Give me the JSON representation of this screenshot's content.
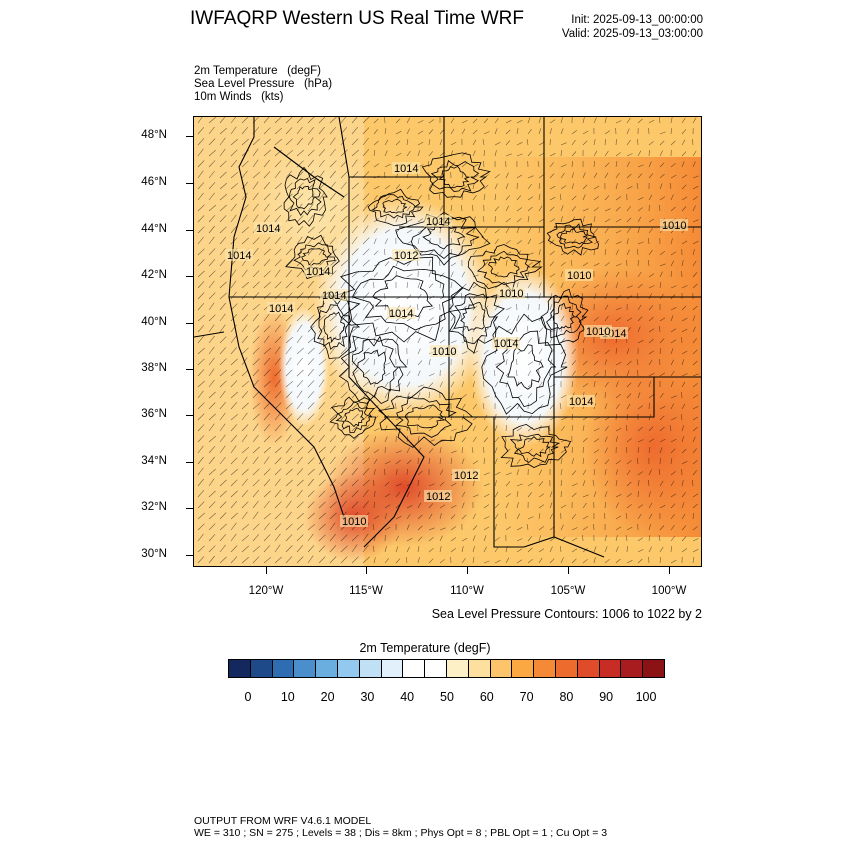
{
  "header": {
    "title": "IWFAQRP Western US Real Time WRF",
    "init": "Init: 2025-09-13_00:00:00",
    "valid": "Valid: 2025-09-13_03:00:00"
  },
  "fields": [
    "2m Temperature   (degF)",
    "Sea Level Pressure   (hPa)",
    "10m Winds   (kts)"
  ],
  "map": {
    "lat_labels": [
      "48°N",
      "46°N",
      "44°N",
      "42°N",
      "40°N",
      "38°N",
      "36°N",
      "34°N",
      "32°N",
      "30°N"
    ],
    "lon_labels": [
      "120°W",
      "115°W",
      "110°W",
      "105°W",
      "100°W"
    ],
    "pressure_labels": [
      "1014",
      "1014",
      "1014",
      "1014",
      "1012",
      "1014",
      "1014",
      "1014",
      "1014",
      "1010",
      "1010",
      "1010",
      "1010",
      "1014",
      "1014",
      "1014",
      "1012",
      "1012",
      "1010",
      "1010"
    ],
    "land_color": "#fcc86a",
    "hot_color": "#e8652f",
    "cool_color": "#eef6fb"
  },
  "contour_note": "Sea Level Pressure Contours: 1006 to 1022 by 2",
  "colorbar": {
    "title": "2m Temperature  (degF)",
    "labels": [
      "0",
      "10",
      "20",
      "30",
      "40",
      "50",
      "60",
      "70",
      "80",
      "90",
      "100"
    ],
    "colors": [
      "#13285c",
      "#1f4a8a",
      "#2f6db3",
      "#4a8fcc",
      "#6aaedf",
      "#93c9ee",
      "#bfe0f5",
      "#e1f0fb",
      "#ffffff",
      "#ffffff",
      "#fdf0c6",
      "#fde0a0",
      "#fdc46c",
      "#fba843",
      "#f58a36",
      "#ee6b2e",
      "#e04b2a",
      "#c72d24",
      "#a81b1e",
      "#8b1316"
    ]
  },
  "footer": {
    "line1": "OUTPUT FROM WRF V4.6.1 MODEL",
    "line2": "WE = 310 ; SN = 275 ; Levels = 38 ; Dis = 8km ; Phys Opt = 8 ; PBL Opt = 1 ; Cu Opt = 3"
  }
}
